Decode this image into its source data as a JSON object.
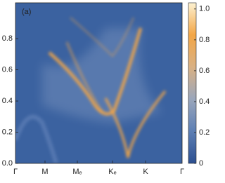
{
  "chart_data": {
    "type": "heatmap",
    "annotation": "(a)",
    "categories": [
      "Γ",
      "M",
      "Mₑ",
      "Kₑ",
      "K",
      "Γ"
    ],
    "ylim": [
      0,
      1.03
    ],
    "yticks": [
      0.0,
      0.2,
      0.4,
      0.6,
      0.8
    ],
    "background": "#3b62a0",
    "feature_color": "#f3a646",
    "colorbar": {
      "lim": [
        0,
        1.04
      ],
      "ticks": [
        0,
        0.2,
        0.4,
        0.6,
        0.8,
        1.0
      ],
      "colors": [
        "#2c4f90",
        "#5d7fb4",
        "#9aa6bb",
        "#d9b184",
        "#f3a646",
        "#fdf2d2"
      ]
    }
  }
}
